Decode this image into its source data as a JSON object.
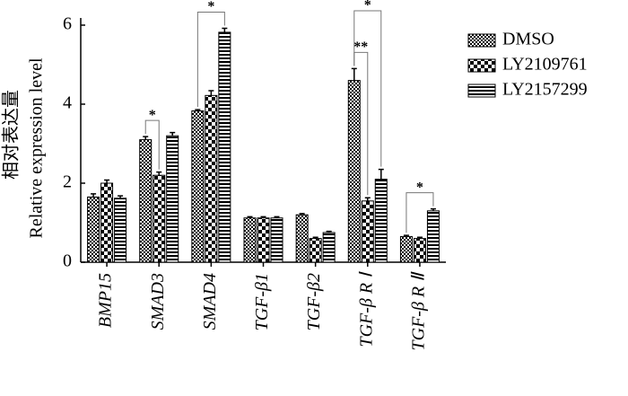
{
  "chart_data": {
    "type": "bar",
    "ylabel": [
      "相对表达量",
      "Relative expression level"
    ],
    "categories": [
      "BMP15",
      "SMAD3",
      "SMAD4",
      "TGF-β1",
      "TGF-β2",
      "TGF-β R Ⅰ",
      "TGF-β R Ⅱ"
    ],
    "series": [
      {
        "name": "DMSO",
        "color": "#000000",
        "pattern": "fine-checker",
        "values": [
          1.65,
          3.1,
          3.83,
          1.12,
          1.2,
          4.6,
          0.65
        ],
        "errors": [
          0.08,
          0.08,
          0.03,
          0.03,
          0.03,
          0.3,
          0.03
        ]
      },
      {
        "name": "LY2109761",
        "color": "#000000",
        "pattern": "coarse-checker",
        "values": [
          2.0,
          2.2,
          4.22,
          1.12,
          0.6,
          1.55,
          0.6
        ],
        "errors": [
          0.08,
          0.08,
          0.12,
          0.03,
          0.03,
          0.08,
          0.03
        ]
      },
      {
        "name": "LY2157299",
        "color": "#000000",
        "pattern": "stripes",
        "values": [
          1.62,
          3.2,
          5.82,
          1.12,
          0.75,
          2.1,
          1.3
        ],
        "errors": [
          0.06,
          0.08,
          0.1,
          0.03,
          0.03,
          0.25,
          0.05
        ]
      }
    ],
    "ylim": [
      0,
      6
    ],
    "yticks": [
      0,
      2,
      4,
      6
    ],
    "significance": [
      {
        "text": "*",
        "category_index": 1,
        "series_index": [
          0,
          1
        ]
      },
      {
        "text": "*",
        "category_index": 2,
        "series_index": [
          0,
          2
        ]
      },
      {
        "text": "**",
        "category_index": 5,
        "series_index": [
          0,
          1
        ]
      },
      {
        "text": "*",
        "category_index": 5,
        "series_index": [
          0,
          2
        ]
      },
      {
        "text": "*",
        "category_index": 6,
        "series_index": [
          0,
          2
        ]
      }
    ],
    "legend": "right"
  }
}
